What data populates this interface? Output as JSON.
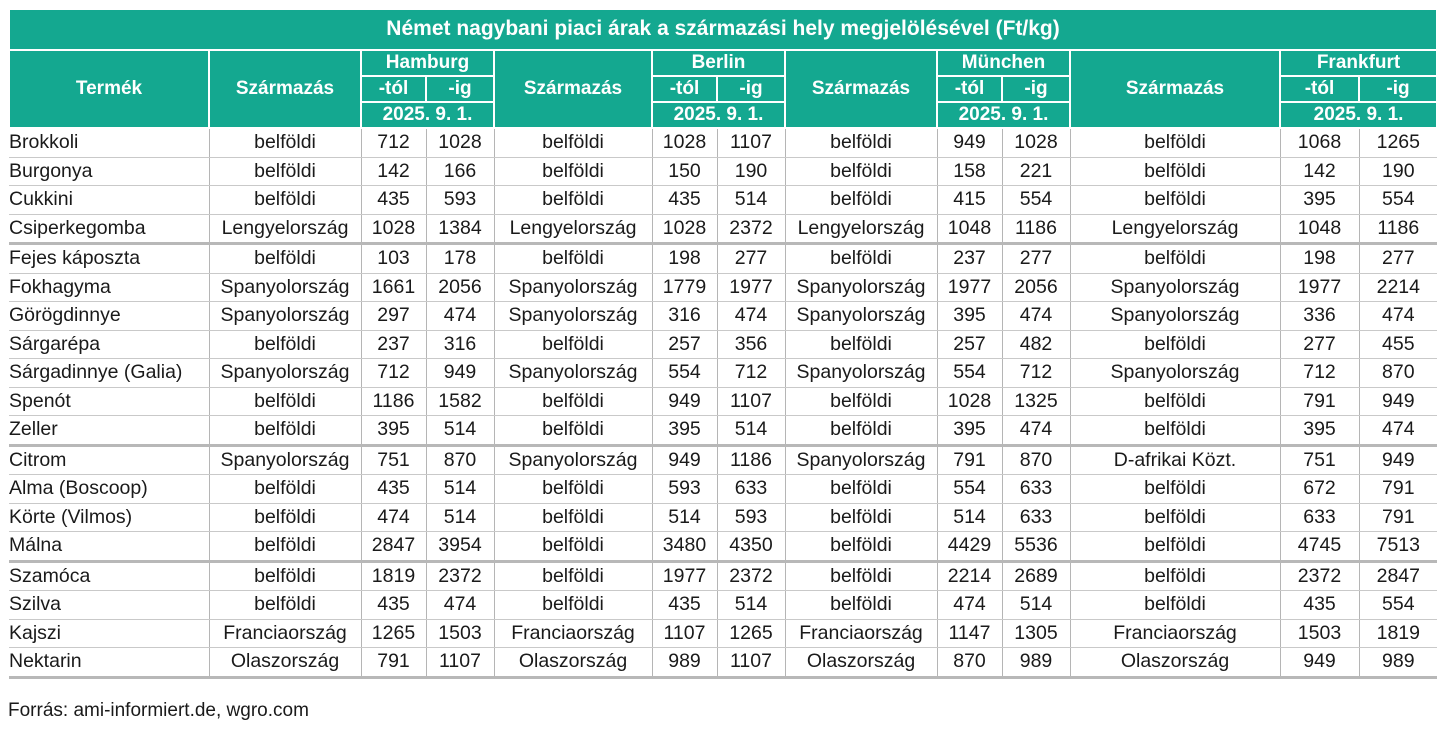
{
  "title": "Német nagybani piaci árak a származási hely megjelölésével (Ft/kg)",
  "headers": {
    "product": "Termék",
    "origin": "Származás",
    "from": "-tól",
    "to": "-ig",
    "date": "2025. 9. 1."
  },
  "markets": [
    "Hamburg",
    "Berlin",
    "München",
    "Frankfurt"
  ],
  "rows": [
    {
      "product": "Brokkoli",
      "cells": [
        [
          "belföldi",
          "712",
          "1028"
        ],
        [
          "belföldi",
          "1028",
          "1107"
        ],
        [
          "belföldi",
          "949",
          "1028"
        ],
        [
          "belföldi",
          "1068",
          "1265"
        ]
      ]
    },
    {
      "product": "Burgonya",
      "cells": [
        [
          "belföldi",
          "142",
          "166"
        ],
        [
          "belföldi",
          "150",
          "190"
        ],
        [
          "belföldi",
          "158",
          "221"
        ],
        [
          "belföldi",
          "142",
          "190"
        ]
      ]
    },
    {
      "product": "Cukkini",
      "cells": [
        [
          "belföldi",
          "435",
          "593"
        ],
        [
          "belföldi",
          "435",
          "514"
        ],
        [
          "belföldi",
          "415",
          "554"
        ],
        [
          "belföldi",
          "395",
          "554"
        ]
      ]
    },
    {
      "product": "Csiperkegomba",
      "cells": [
        [
          "Lengyelország",
          "1028",
          "1384"
        ],
        [
          "Lengyelország",
          "1028",
          "2372"
        ],
        [
          "Lengyelország",
          "1048",
          "1186"
        ],
        [
          "Lengyelország",
          "1048",
          "1186"
        ]
      ]
    },
    {
      "product": "Fejes káposzta",
      "cells": [
        [
          "belföldi",
          "103",
          "178"
        ],
        [
          "belföldi",
          "198",
          "277"
        ],
        [
          "belföldi",
          "237",
          "277"
        ],
        [
          "belföldi",
          "198",
          "277"
        ]
      ]
    },
    {
      "product": "Fokhagyma",
      "cells": [
        [
          "Spanyolország",
          "1661",
          "2056"
        ],
        [
          "Spanyolország",
          "1779",
          "1977"
        ],
        [
          "Spanyolország",
          "1977",
          "2056"
        ],
        [
          "Spanyolország",
          "1977",
          "2214"
        ]
      ]
    },
    {
      "product": "Görögdinnye",
      "cells": [
        [
          "Spanyolország",
          "297",
          "474"
        ],
        [
          "Spanyolország",
          "316",
          "474"
        ],
        [
          "Spanyolország",
          "395",
          "474"
        ],
        [
          "Spanyolország",
          "336",
          "474"
        ]
      ]
    },
    {
      "product": "Sárgarépa",
      "cells": [
        [
          "belföldi",
          "237",
          "316"
        ],
        [
          "belföldi",
          "257",
          "356"
        ],
        [
          "belföldi",
          "257",
          "482"
        ],
        [
          "belföldi",
          "277",
          "455"
        ]
      ]
    },
    {
      "product": "Sárgadinnye (Galia)",
      "cells": [
        [
          "Spanyolország",
          "712",
          "949"
        ],
        [
          "Spanyolország",
          "554",
          "712"
        ],
        [
          "Spanyolország",
          "554",
          "712"
        ],
        [
          "Spanyolország",
          "712",
          "870"
        ]
      ]
    },
    {
      "product": "Spenót",
      "cells": [
        [
          "belföldi",
          "1186",
          "1582"
        ],
        [
          "belföldi",
          "949",
          "1107"
        ],
        [
          "belföldi",
          "1028",
          "1325"
        ],
        [
          "belföldi",
          "791",
          "949"
        ]
      ]
    },
    {
      "product": "Zeller",
      "cells": [
        [
          "belföldi",
          "395",
          "514"
        ],
        [
          "belföldi",
          "395",
          "514"
        ],
        [
          "belföldi",
          "395",
          "474"
        ],
        [
          "belföldi",
          "395",
          "474"
        ]
      ]
    },
    {
      "product": "Citrom",
      "cells": [
        [
          "Spanyolország",
          "751",
          "870"
        ],
        [
          "Spanyolország",
          "949",
          "1186"
        ],
        [
          "Spanyolország",
          "791",
          "870"
        ],
        [
          "D-afrikai Közt.",
          "751",
          "949"
        ]
      ]
    },
    {
      "product": "Alma (Boscoop)",
      "cells": [
        [
          "belföldi",
          "435",
          "514"
        ],
        [
          "belföldi",
          "593",
          "633"
        ],
        [
          "belföldi",
          "554",
          "633"
        ],
        [
          "belföldi",
          "672",
          "791"
        ]
      ]
    },
    {
      "product": "Körte (Vilmos)",
      "cells": [
        [
          "belföldi",
          "474",
          "514"
        ],
        [
          "belföldi",
          "514",
          "593"
        ],
        [
          "belföldi",
          "514",
          "633"
        ],
        [
          "belföldi",
          "633",
          "791"
        ]
      ]
    },
    {
      "product": "Málna",
      "cells": [
        [
          "belföldi",
          "2847",
          "3954"
        ],
        [
          "belföldi",
          "3480",
          "4350"
        ],
        [
          "belföldi",
          "4429",
          "5536"
        ],
        [
          "belföldi",
          "4745",
          "7513"
        ]
      ]
    },
    {
      "product": "Szamóca",
      "cells": [
        [
          "belföldi",
          "1819",
          "2372"
        ],
        [
          "belföldi",
          "1977",
          "2372"
        ],
        [
          "belföldi",
          "2214",
          "2689"
        ],
        [
          "belföldi",
          "2372",
          "2847"
        ]
      ]
    },
    {
      "product": "Szilva",
      "cells": [
        [
          "belföldi",
          "435",
          "474"
        ],
        [
          "belföldi",
          "435",
          "514"
        ],
        [
          "belföldi",
          "474",
          "514"
        ],
        [
          "belföldi",
          "435",
          "554"
        ]
      ]
    },
    {
      "product": "Kajszi",
      "cells": [
        [
          "Franciaország",
          "1265",
          "1503"
        ],
        [
          "Franciaország",
          "1107",
          "1265"
        ],
        [
          "Franciaország",
          "1147",
          "1305"
        ],
        [
          "Franciaország",
          "1503",
          "1819"
        ]
      ]
    },
    {
      "product": "Nektarin",
      "cells": [
        [
          "Olaszország",
          "791",
          "1107"
        ],
        [
          "Olaszország",
          "989",
          "1107"
        ],
        [
          "Olaszország",
          "870",
          "989"
        ],
        [
          "Olaszország",
          "949",
          "989"
        ]
      ]
    }
  ],
  "source": "Forrás: ami-informiert.de, wgro.com"
}
